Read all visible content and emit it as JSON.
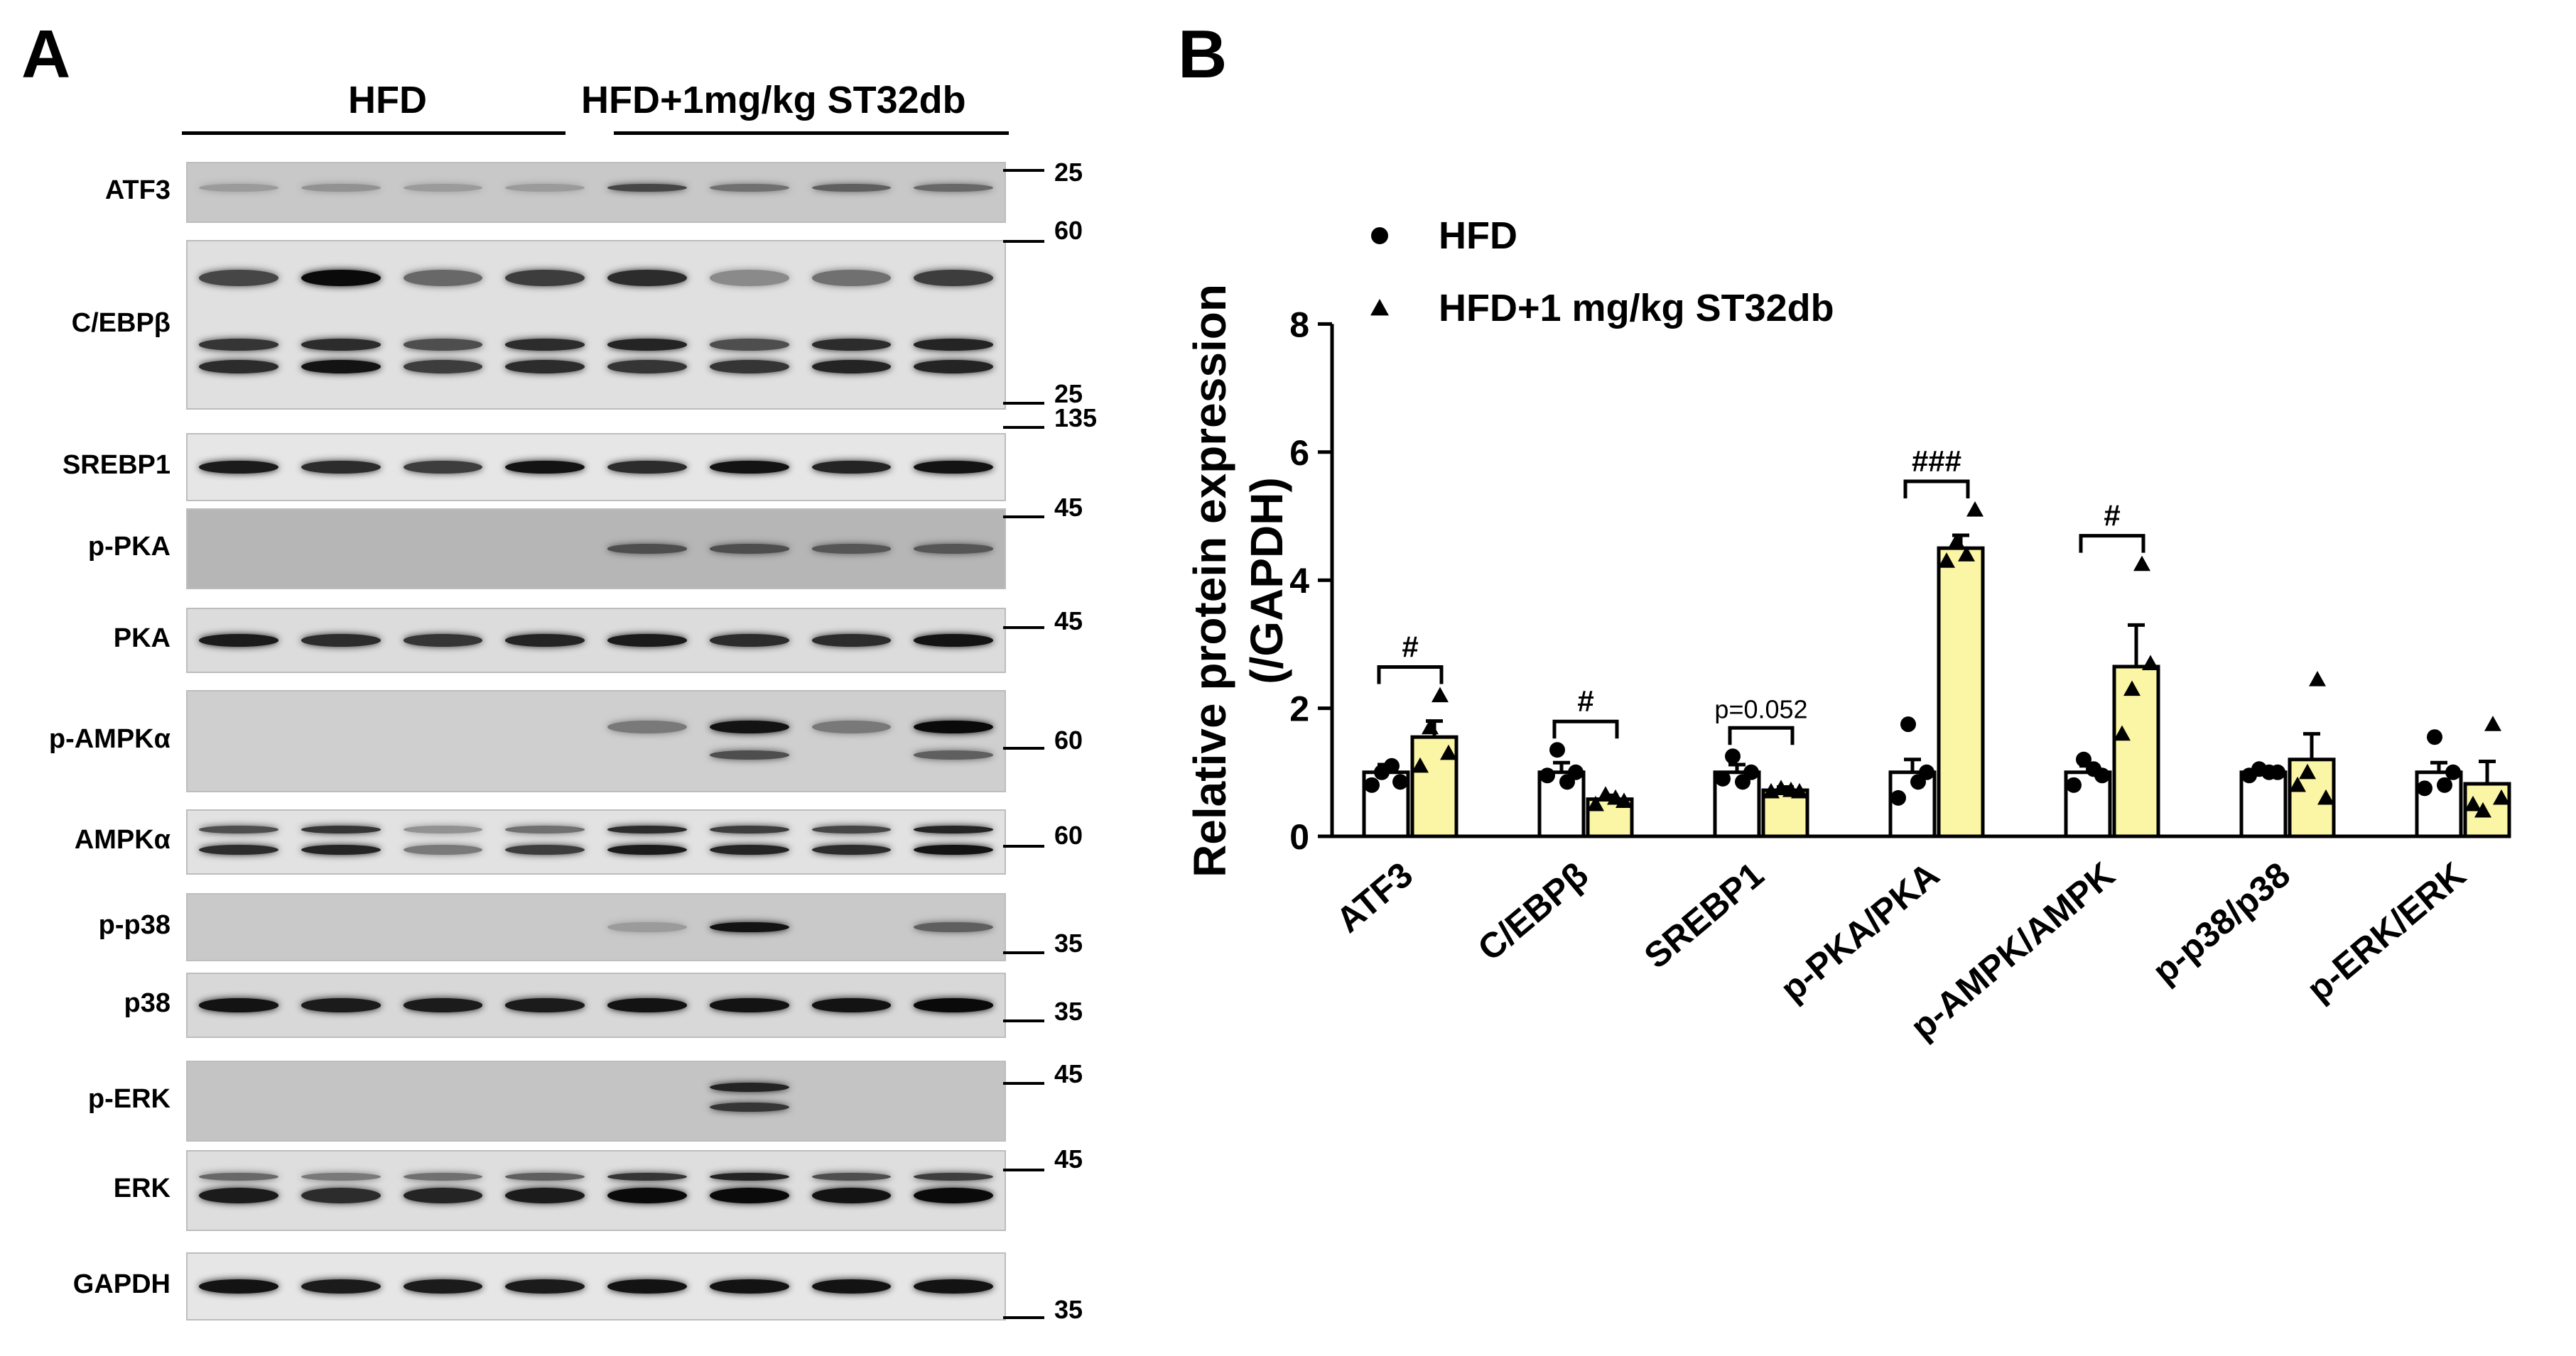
{
  "panel_a": {
    "letter": "A",
    "group1_label": "HFD",
    "group2_label": "HFD+1mg/kg ST32db",
    "rows": [
      {
        "label": "ATF3",
        "bg": "#c8c8c8",
        "markers": [
          "25"
        ]
      },
      {
        "label": "C/EBPβ",
        "bg": "#e0e0e0",
        "markers": [
          "60",
          "25"
        ]
      },
      {
        "label": "SREBP1",
        "bg": "#e6e6e6",
        "markers": [
          "135"
        ]
      },
      {
        "label": "p-PKA",
        "bg": "#b6b6b6",
        "markers": [
          "45"
        ]
      },
      {
        "label": "PKA",
        "bg": "#dcdcdc",
        "markers": [
          "45"
        ]
      },
      {
        "label": "p-AMPKα",
        "bg": "#cfcfcf",
        "markers": [
          "60"
        ]
      },
      {
        "label": "AMPKα",
        "bg": "#e2e2e2",
        "markers": [
          "60"
        ]
      },
      {
        "label": "p-p38",
        "bg": "#c9c9c9",
        "markers": [
          "35"
        ]
      },
      {
        "label": "p38",
        "bg": "#d8d8d8",
        "markers": [
          "35"
        ]
      },
      {
        "label": "p-ERK",
        "bg": "#c4c4c4",
        "markers": [
          "45"
        ]
      },
      {
        "label": "ERK",
        "bg": "#dedede",
        "markers": [
          "45"
        ]
      },
      {
        "label": "GAPDH",
        "bg": "#e6e6e6",
        "markers": [
          "35"
        ]
      }
    ]
  },
  "panel_b": {
    "letter": "B",
    "colors": {
      "hfd_bar": "#ffffff",
      "st32db_bar": "#fbf6a6",
      "edge": "#000000"
    }
  },
  "chart_data": {
    "type": "bar",
    "ylabel": "Relative protein expression (/GAPDH)",
    "ylabel_lines": [
      "Relative protein expression",
      "(/GAPDH)"
    ],
    "ylim": [
      0,
      8
    ],
    "yticks": [
      "0",
      "2",
      "4",
      "6",
      "8"
    ],
    "legend_position": "top-left",
    "categories": [
      "ATF3",
      "C/EBPβ",
      "SREBP1",
      "p-PKA/PKA",
      "p-AMPK/AMPK",
      "p-p38/p38",
      "p-ERK/ERK"
    ],
    "series": [
      {
        "name": "HFD",
        "marker": "circle",
        "values": [
          1.0,
          1.0,
          1.0,
          1.0,
          1.0,
          1.0,
          1.0
        ],
        "errors": [
          0.12,
          0.15,
          0.12,
          0.2,
          0.1,
          0.05,
          0.15
        ],
        "points": [
          [
            0.8,
            1.0,
            1.1,
            0.85
          ],
          [
            0.95,
            1.35,
            0.85,
            1.0
          ],
          [
            0.9,
            1.25,
            0.85,
            1.0
          ],
          [
            0.6,
            1.75,
            0.85,
            1.0
          ],
          [
            0.8,
            1.2,
            1.05,
            0.95
          ],
          [
            0.95,
            1.05,
            1.0,
            1.0
          ],
          [
            0.75,
            1.55,
            0.8,
            1.0
          ]
        ]
      },
      {
        "name": "HFD+1 mg/kg ST32db",
        "marker": "triangle",
        "values": [
          1.55,
          0.58,
          0.72,
          4.5,
          2.65,
          1.2,
          0.82
        ],
        "errors": [
          0.25,
          0.06,
          0.05,
          0.2,
          0.65,
          0.4,
          0.35
        ],
        "points": [
          [
            1.1,
            1.7,
            2.2,
            1.3
          ],
          [
            0.5,
            0.65,
            0.6,
            0.55
          ],
          [
            0.7,
            0.75,
            0.72,
            0.7
          ],
          [
            4.3,
            4.6,
            4.4,
            5.1
          ],
          [
            1.6,
            2.3,
            4.25,
            2.7
          ],
          [
            0.8,
            1.0,
            2.45,
            0.6
          ],
          [
            0.5,
            0.4,
            1.75,
            0.6
          ]
        ]
      }
    ],
    "annotations": [
      {
        "category": "ATF3",
        "text": "#"
      },
      {
        "category": "C/EBPβ",
        "text": "#"
      },
      {
        "category": "SREBP1",
        "text": "p=0.052"
      },
      {
        "category": "p-PKA/PKA",
        "text": "###"
      },
      {
        "category": "p-AMPK/AMPK",
        "text": "#"
      }
    ]
  }
}
